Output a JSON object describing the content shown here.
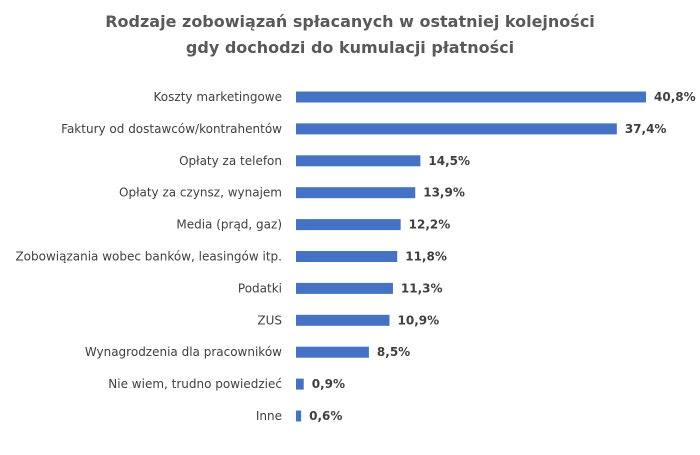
{
  "chart_data": {
    "type": "bar",
    "orientation": "horizontal",
    "title": "Rodzaje zobowiązań spłacanych w ostatniej kolejności gdy dochodzi do kumulacji płatności",
    "title_lines": [
      "Rodzaje zobowiązań spłacanych w ostatniej kolejności",
      "gdy dochodzi do kumulacji płatności"
    ],
    "categories": [
      "Koszty marketingowe",
      "Faktury od dostawców/kontrahentów",
      "Opłaty za telefon",
      "Opłaty za czynsz, wynajem",
      "Media (prąd, gaz)",
      "Zobowiązania wobec banków, leasingów itp.",
      "Podatki",
      "ZUS",
      "Wynagrodzenia dla pracowników",
      "Nie wiem, trudno powiedzieć",
      "Inne"
    ],
    "values": [
      40.8,
      37.4,
      14.5,
      13.9,
      12.2,
      11.8,
      11.3,
      10.9,
      8.5,
      0.9,
      0.6
    ],
    "value_labels": [
      "40,8%",
      "37,4%",
      "14,5%",
      "13,9%",
      "12,2%",
      "11,8%",
      "11,3%",
      "10,9%",
      "8,5%",
      "0,9%",
      "0,6%"
    ],
    "xlabel": "",
    "ylabel": "",
    "xlim": [
      0,
      40.8
    ],
    "grid": false,
    "legend": "none",
    "bar_color": "#4472C4"
  }
}
